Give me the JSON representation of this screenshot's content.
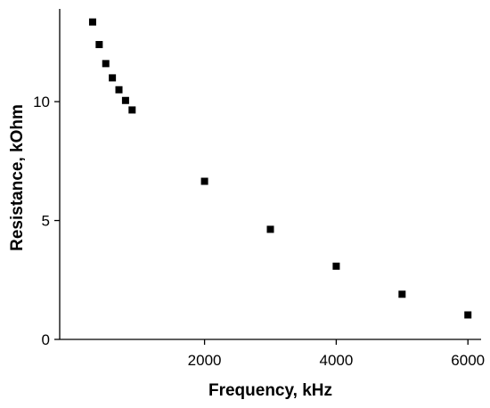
{
  "chart_data": {
    "type": "scatter",
    "title": "",
    "xlabel": "Frequency, kHz",
    "ylabel": "Resistance, kOhm",
    "xlim": [
      -200,
      6200
    ],
    "ylim": [
      0,
      13.9
    ],
    "xticks": [
      2000,
      4000,
      6000
    ],
    "yticks": [
      0,
      5,
      10
    ],
    "grid": false,
    "legend": "none",
    "marker": "square",
    "color": "#000000",
    "series": [
      {
        "x": [
          300,
          400,
          500,
          600,
          700,
          800,
          900,
          2000,
          3000,
          4000,
          5000,
          6000
        ],
        "y": [
          13.35,
          12.4,
          11.6,
          11.0,
          10.5,
          10.05,
          9.65,
          6.65,
          4.63,
          3.08,
          1.9,
          1.03
        ]
      }
    ]
  }
}
